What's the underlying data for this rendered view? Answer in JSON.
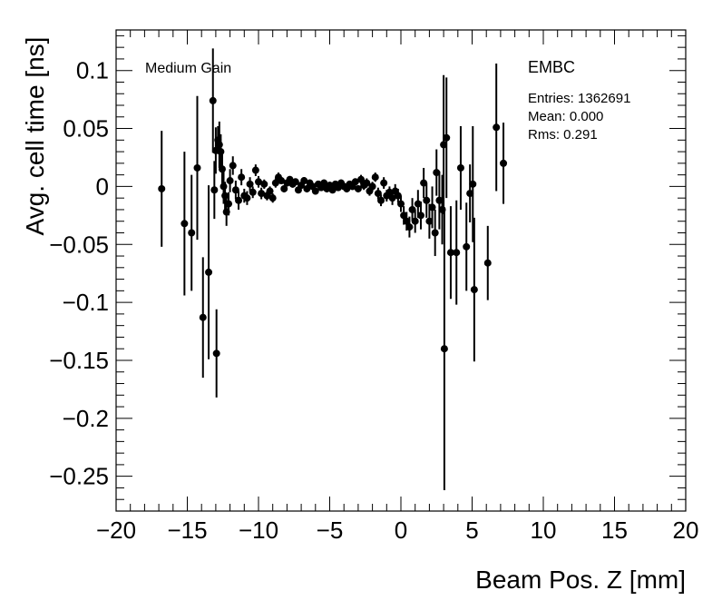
{
  "chart_data": {
    "type": "scatter",
    "style": "errorbar",
    "xlabel": "Beam Pos. Z [mm]",
    "ylabel": "Avg. cell time [ns]",
    "xlim": [
      -20,
      20
    ],
    "ylim": [
      -0.28,
      0.135
    ],
    "xticks": [
      -20,
      -15,
      -10,
      -5,
      0,
      5,
      10,
      15,
      20
    ],
    "xtick_labels": [
      "−20",
      "−15",
      "−10",
      "−5",
      "0",
      "5",
      "10",
      "15",
      "20"
    ],
    "yticks": [
      0.1,
      0.05,
      0,
      -0.05,
      -0.1,
      -0.15,
      -0.2,
      -0.25
    ],
    "ytick_labels": [
      "0.1",
      "0.05",
      "0",
      "−0.05",
      "−0.1",
      "−0.15",
      "−0.2",
      "−0.25"
    ],
    "grid": false,
    "annotations": {
      "gain": "Medium Gain",
      "region": "EMBC",
      "stats": [
        "Entries: 1362691",
        "Mean: 0.000",
        "Rms: 0.291"
      ]
    },
    "series": [
      {
        "points": [
          {
            "x": -16.8,
            "y": -0.002,
            "err": 0.05
          },
          {
            "x": -15.2,
            "y": -0.032,
            "err": 0.062
          },
          {
            "x": -14.7,
            "y": -0.04,
            "err": 0.05
          },
          {
            "x": -14.3,
            "y": 0.016,
            "err": 0.062
          },
          {
            "x": -13.9,
            "y": -0.113,
            "err": 0.052
          },
          {
            "x": -13.5,
            "y": -0.074,
            "err": 0.075
          },
          {
            "x": -13.2,
            "y": 0.074,
            "err": 0.045
          },
          {
            "x": -13.1,
            "y": -0.003,
            "err": 0.025
          },
          {
            "x": -12.95,
            "y": -0.144,
            "err": 0.038
          },
          {
            "x": -13.0,
            "y": 0.031,
            "err": 0.02
          },
          {
            "x": -12.85,
            "y": 0.04,
            "err": 0.012
          },
          {
            "x": -12.75,
            "y": 0.036,
            "err": 0.02
          },
          {
            "x": -12.65,
            "y": 0.03,
            "err": 0.015
          },
          {
            "x": -12.55,
            "y": 0.015,
            "err": 0.015
          },
          {
            "x": -12.45,
            "y": 0.0,
            "err": 0.015
          },
          {
            "x": -12.35,
            "y": -0.008,
            "err": 0.012
          },
          {
            "x": -12.25,
            "y": -0.022,
            "err": 0.012
          },
          {
            "x": -12.1,
            "y": -0.015,
            "err": 0.01
          },
          {
            "x": -12.0,
            "y": 0.005,
            "err": 0.01
          },
          {
            "x": -11.8,
            "y": 0.018,
            "err": 0.008
          },
          {
            "x": -11.6,
            "y": -0.003,
            "err": 0.008
          },
          {
            "x": -11.4,
            "y": -0.012,
            "err": 0.008
          },
          {
            "x": -11.2,
            "y": 0.008,
            "err": 0.007
          },
          {
            "x": -11.0,
            "y": -0.008,
            "err": 0.006
          },
          {
            "x": -10.8,
            "y": -0.01,
            "err": 0.006
          },
          {
            "x": -10.6,
            "y": 0.002,
            "err": 0.006
          },
          {
            "x": -10.4,
            "y": -0.005,
            "err": 0.005
          },
          {
            "x": -10.2,
            "y": 0.014,
            "err": 0.005
          },
          {
            "x": -10.0,
            "y": 0.004,
            "err": 0.005
          },
          {
            "x": -9.8,
            "y": -0.006,
            "err": 0.005
          },
          {
            "x": -9.6,
            "y": 0.002,
            "err": 0.004
          },
          {
            "x": -9.4,
            "y": -0.008,
            "err": 0.004
          },
          {
            "x": -9.2,
            "y": -0.004,
            "err": 0.004
          },
          {
            "x": -9.0,
            "y": -0.01,
            "err": 0.004
          },
          {
            "x": -8.8,
            "y": 0.003,
            "err": 0.004
          },
          {
            "x": -8.6,
            "y": 0.008,
            "err": 0.004
          },
          {
            "x": -8.4,
            "y": 0.005,
            "err": 0.003
          },
          {
            "x": -8.2,
            "y": -0.002,
            "err": 0.003
          },
          {
            "x": -8.0,
            "y": 0.003,
            "err": 0.003
          },
          {
            "x": -7.8,
            "y": 0.006,
            "err": 0.003
          },
          {
            "x": -7.6,
            "y": 0.002,
            "err": 0.003
          },
          {
            "x": -7.4,
            "y": 0.004,
            "err": 0.003
          },
          {
            "x": -7.2,
            "y": -0.003,
            "err": 0.003
          },
          {
            "x": -7.0,
            "y": 0.001,
            "err": 0.003
          },
          {
            "x": -6.8,
            "y": 0.005,
            "err": 0.003
          },
          {
            "x": -6.6,
            "y": -0.002,
            "err": 0.003
          },
          {
            "x": -6.4,
            "y": 0.003,
            "err": 0.003
          },
          {
            "x": -6.2,
            "y": 0.0,
            "err": 0.003
          },
          {
            "x": -6.0,
            "y": -0.004,
            "err": 0.003
          },
          {
            "x": -5.8,
            "y": 0.002,
            "err": 0.003
          },
          {
            "x": -5.6,
            "y": -0.001,
            "err": 0.003
          },
          {
            "x": -5.4,
            "y": 0.003,
            "err": 0.003
          },
          {
            "x": -5.2,
            "y": -0.002,
            "err": 0.003
          },
          {
            "x": -5.0,
            "y": 0.001,
            "err": 0.003
          },
          {
            "x": -4.8,
            "y": -0.003,
            "err": 0.003
          },
          {
            "x": -4.6,
            "y": 0.002,
            "err": 0.003
          },
          {
            "x": -4.4,
            "y": -0.001,
            "err": 0.003
          },
          {
            "x": -4.2,
            "y": 0.003,
            "err": 0.003
          },
          {
            "x": -4.0,
            "y": 0.0,
            "err": 0.003
          },
          {
            "x": -3.8,
            "y": -0.002,
            "err": 0.003
          },
          {
            "x": -3.6,
            "y": 0.002,
            "err": 0.003
          },
          {
            "x": -3.4,
            "y": 0.0,
            "err": 0.003
          },
          {
            "x": -3.2,
            "y": 0.004,
            "err": 0.003
          },
          {
            "x": -3.0,
            "y": -0.002,
            "err": 0.003
          },
          {
            "x": -2.8,
            "y": 0.006,
            "err": 0.004
          },
          {
            "x": -2.6,
            "y": 0.001,
            "err": 0.004
          },
          {
            "x": -2.4,
            "y": 0.003,
            "err": 0.004
          },
          {
            "x": -2.2,
            "y": -0.004,
            "err": 0.004
          },
          {
            "x": -2.0,
            "y": 0.0,
            "err": 0.004
          },
          {
            "x": -1.8,
            "y": 0.008,
            "err": 0.004
          },
          {
            "x": -1.6,
            "y": -0.006,
            "err": 0.005
          },
          {
            "x": -1.4,
            "y": -0.012,
            "err": 0.005
          },
          {
            "x": -1.2,
            "y": 0.003,
            "err": 0.005
          },
          {
            "x": -1.0,
            "y": -0.008,
            "err": 0.005
          },
          {
            "x": -0.8,
            "y": -0.005,
            "err": 0.005
          },
          {
            "x": -0.6,
            "y": -0.01,
            "err": 0.006
          },
          {
            "x": -0.4,
            "y": -0.004,
            "err": 0.006
          },
          {
            "x": -0.2,
            "y": -0.008,
            "err": 0.006
          },
          {
            "x": 0.0,
            "y": -0.015,
            "err": 0.007
          },
          {
            "x": 0.2,
            "y": -0.025,
            "err": 0.008
          },
          {
            "x": 0.4,
            "y": -0.03,
            "err": 0.008
          },
          {
            "x": 0.6,
            "y": -0.035,
            "err": 0.009
          },
          {
            "x": 0.8,
            "y": -0.02,
            "err": 0.01
          },
          {
            "x": 1.0,
            "y": -0.03,
            "err": 0.01
          },
          {
            "x": 1.2,
            "y": -0.015,
            "err": 0.012
          },
          {
            "x": 1.4,
            "y": -0.025,
            "err": 0.012
          },
          {
            "x": 1.6,
            "y": 0.003,
            "err": 0.013
          },
          {
            "x": 1.8,
            "y": -0.012,
            "err": 0.015
          },
          {
            "x": 2.0,
            "y": -0.03,
            "err": 0.015
          },
          {
            "x": 2.2,
            "y": -0.018,
            "err": 0.018
          },
          {
            "x": 2.4,
            "y": -0.04,
            "err": 0.02
          },
          {
            "x": 2.5,
            "y": 0.012,
            "err": 0.02
          },
          {
            "x": 2.7,
            "y": -0.012,
            "err": 0.025
          },
          {
            "x": 2.9,
            "y": -0.02,
            "err": 0.03
          },
          {
            "x": 3.0,
            "y": 0.036,
            "err": 0.06
          },
          {
            "x": 3.05,
            "y": -0.14,
            "err": 0.122
          },
          {
            "x": 3.2,
            "y": 0.042,
            "err": 0.052
          },
          {
            "x": 3.5,
            "y": -0.057,
            "err": 0.04
          },
          {
            "x": 3.9,
            "y": -0.057,
            "err": 0.045
          },
          {
            "x": 4.2,
            "y": 0.016,
            "err": 0.036
          },
          {
            "x": 4.6,
            "y": -0.052,
            "err": 0.038
          },
          {
            "x": 4.85,
            "y": -0.006,
            "err": 0.025
          },
          {
            "x": 5.05,
            "y": 0.002,
            "err": 0.05
          },
          {
            "x": 5.15,
            "y": -0.089,
            "err": 0.062
          },
          {
            "x": 6.1,
            "y": -0.066,
            "err": 0.032
          },
          {
            "x": 6.7,
            "y": 0.051,
            "err": 0.055
          },
          {
            "x": 7.2,
            "y": 0.02,
            "err": 0.035
          }
        ]
      }
    ]
  }
}
